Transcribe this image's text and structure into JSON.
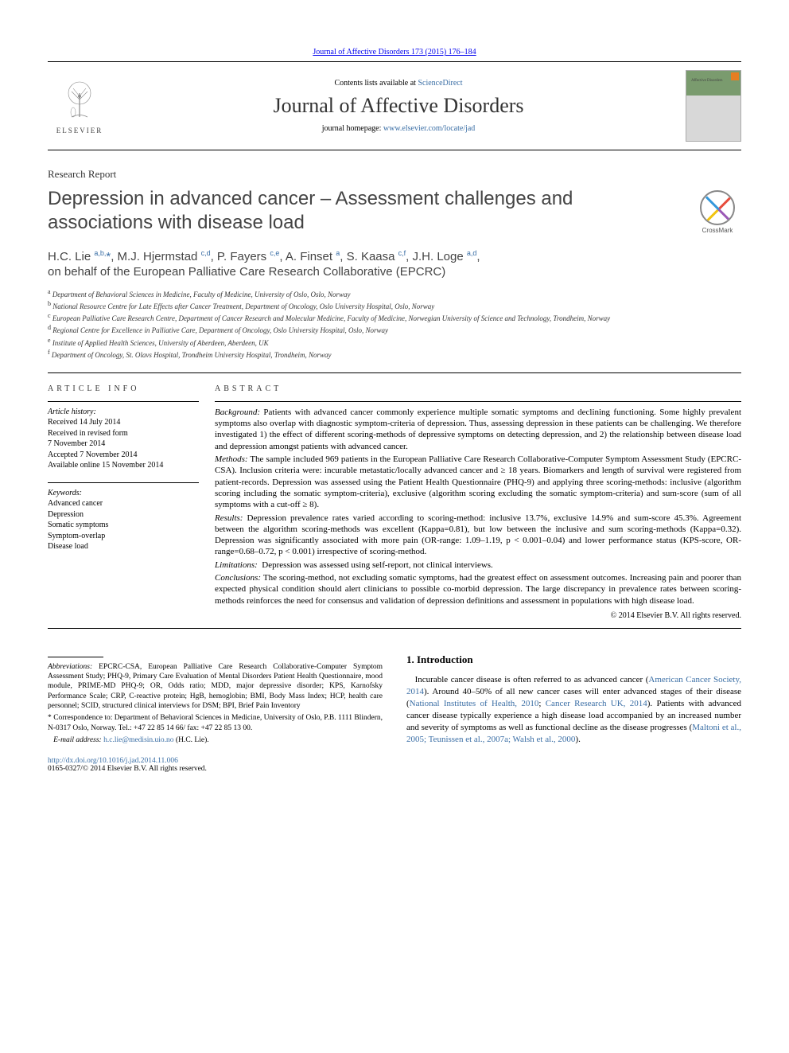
{
  "top_journal_ref": "Journal of Affective Disorders 173 (2015) 176–184",
  "header": {
    "contents_prefix": "Contents lists available at ",
    "contents_link": "ScienceDirect",
    "journal_title": "Journal of Affective Disorders",
    "homepage_prefix": "journal homepage: ",
    "homepage_url": "www.elsevier.com/locate/jad",
    "elsevier": "ELSEVIER",
    "cover_small": "Affective Disorders"
  },
  "article_type": "Research Report",
  "title": "Depression in advanced cancer – Assessment challenges and associations with disease load",
  "crossmark": "CrossMark",
  "authors_html": "H.C. Lie <sup>a,b,</sup><span class='star'>*</span>, M.J. Hjermstad <sup>c,d</sup>, P. Fayers <sup>c,e</sup>, A. Finset <sup>a</sup>, S. Kaasa <sup>c,f</sup>, J.H. Loge <sup>a,d</sup>,",
  "on_behalf": "on behalf of the European Palliative Care Research Collaborative (EPCRC)",
  "affiliations": [
    {
      "sup": "a",
      "text": "Department of Behavioral Sciences in Medicine, Faculty of Medicine, University of Oslo, Oslo, Norway"
    },
    {
      "sup": "b",
      "text": "National Resource Centre for Late Effects after Cancer Treatment, Department of Oncology, Oslo University Hospital, Oslo, Norway"
    },
    {
      "sup": "c",
      "text": "European Palliative Care Research Centre, Department of Cancer Research and Molecular Medicine, Faculty of Medicine, Norwegian University of Science and Technology, Trondheim, Norway"
    },
    {
      "sup": "d",
      "text": "Regional Centre for Excellence in Palliative Care, Department of Oncology, Oslo University Hospital, Oslo, Norway"
    },
    {
      "sup": "e",
      "text": "Institute of Applied Health Sciences, University of Aberdeen, Aberdeen, UK"
    },
    {
      "sup": "f",
      "text": "Department of Oncology, St. Olavs Hospital, Trondheim University Hospital, Trondheim, Norway"
    }
  ],
  "info": {
    "heading": "ARTICLE INFO",
    "history_label": "Article history:",
    "history": [
      "Received 14 July 2014",
      "Received in revised form",
      "7 November 2014",
      "Accepted 7 November 2014",
      "Available online 15 November 2014"
    ],
    "keywords_label": "Keywords:",
    "keywords": [
      "Advanced cancer",
      "Depression",
      "Somatic symptoms",
      "Symptom-overlap",
      "Disease load"
    ]
  },
  "abstract": {
    "heading": "ABSTRACT",
    "background_label": "Background:",
    "background": "Patients with advanced cancer commonly experience multiple somatic symptoms and declining functioning. Some highly prevalent symptoms also overlap with diagnostic symptom-criteria of depression. Thus, assessing depression in these patients can be challenging. We therefore investigated 1) the effect of different scoring-methods of depressive symptoms on detecting depression, and 2) the relationship between disease load and depression amongst patients with advanced cancer.",
    "methods_label": "Methods:",
    "methods": "The sample included 969 patients in the European Palliative Care Research Collaborative-Computer Symptom Assessment Study (EPCRC-CSA). Inclusion criteria were: incurable metastatic/locally advanced cancer and ≥ 18 years. Biomarkers and length of survival were registered from patient-records. Depression was assessed using the Patient Health Questionnaire (PHQ-9) and applying three scoring-methods: inclusive (algorithm scoring including the somatic symptom-criteria), exclusive (algorithm scoring excluding the somatic symptom-criteria) and sum-score (sum of all symptoms with a cut-off ≥ 8).",
    "results_label": "Results:",
    "results": "Depression prevalence rates varied according to scoring-method: inclusive 13.7%, exclusive 14.9% and sum-score 45.3%. Agreement between the algorithm scoring-methods was excellent (Kappa=0.81), but low between the inclusive and sum scoring-methods (Kappa=0.32). Depression was significantly associated with more pain (OR-range: 1.09–1.19, p < 0.001–0.04) and lower performance status (KPS-score, OR-range=0.68–0.72, p < 0.001) irrespective of scoring-method.",
    "limitations_label": "Limitations:",
    "limitations": "Depression was assessed using self-report, not clinical interviews.",
    "conclusions_label": "Conclusions:",
    "conclusions": "The scoring-method, not excluding somatic symptoms, had the greatest effect on assessment outcomes. Increasing pain and poorer than expected physical condition should alert clinicians to possible co-morbid depression. The large discrepancy in prevalence rates between scoring-methods reinforces the need for consensus and validation of depression definitions and assessment in populations with high disease load.",
    "copyright": "© 2014 Elsevier B.V. All rights reserved."
  },
  "footnotes": {
    "abbrev_label": "Abbreviations:",
    "abbrev": "EPCRC-CSA, European Palliative Care Research Collaborative-Computer Symptom Assessment Study; PHQ-9, Primary Care Evaluation of Mental Disorders Patient Health Questionnaire, mood module, PRIME-MD PHQ-9; OR, Odds ratio; MDD, major depressive disorder; KPS, Karnofsky Performance Scale; CRP, C-reactive protein; HgB, hemoglobin; BMI, Body Mass Index; HCP, health care personnel; SCID, structured clinical interviews for DSM; BPI, Brief Pain Inventory",
    "corresp_marker": "*",
    "corresp": "Correspondence to: Department of Behavioral Sciences in Medicine, University of Oslo, P.B. 1111 Blindern, N-0317 Oslo, Norway. Tel.: +47 22 85 14 66/ fax: +47 22 85 13 00.",
    "email_label": "E-mail address:",
    "email": "h.c.lie@medisin.uio.no",
    "email_name": " (H.C. Lie)."
  },
  "intro": {
    "heading": "1.  Introduction",
    "p1_a": "Incurable cancer disease is often referred to as advanced cancer (",
    "p1_link1": "American Cancer Society, 2014",
    "p1_b": "). Around 40–50% of all new cancer cases will enter advanced stages of their disease (",
    "p1_link2": "National Institutes of Health, 2010",
    "p1_c": "; ",
    "p1_link3": "Cancer Research UK, 2014",
    "p1_d": "). Patients with advanced cancer disease typically experience a high disease load accompanied by an increased number and severity of symptoms as well as functional decline as the disease progresses (",
    "p1_link4": "Maltoni et al., 2005; Teunissen et al., 2007a; Walsh et al., 2000",
    "p1_e": ")."
  },
  "footer": {
    "doi": "http://dx.doi.org/10.1016/j.jad.2014.11.006",
    "issn_line": "0165-0327/© 2014 Elsevier B.V. All rights reserved."
  },
  "colors": {
    "link": "#3a6ea5",
    "text": "#333333",
    "cover_top": "#7a9b6e"
  }
}
